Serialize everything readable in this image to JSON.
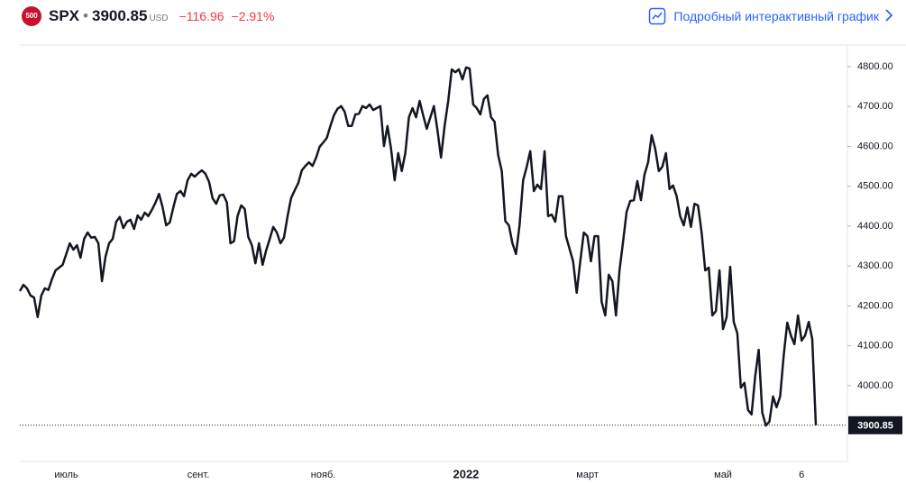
{
  "header": {
    "logo": "500",
    "symbol": "SPX",
    "price": "3900.85",
    "currency": "USD",
    "change": "−116.96",
    "change_percent": "−2.91%",
    "link": "Подробный интерактивный график"
  },
  "chart_data": {
    "type": "line",
    "categories": [
      null,
      null,
      null,
      null,
      null,
      null,
      null,
      null,
      null,
      null,
      null,
      null,
      null,
      "июль",
      null,
      null,
      null,
      null,
      null,
      null,
      null,
      null,
      null,
      null,
      null,
      null,
      null,
      null,
      null,
      null,
      null,
      null,
      null,
      null,
      null,
      null,
      null,
      null,
      null,
      null,
      null,
      null,
      null,
      null,
      null,
      null,
      null,
      null,
      null,
      null,
      "сент.",
      null,
      null,
      null,
      null,
      null,
      null,
      null,
      null,
      null,
      null,
      null,
      null,
      null,
      null,
      null,
      null,
      null,
      null,
      null,
      null,
      null,
      null,
      null,
      null,
      null,
      null,
      null,
      null,
      null,
      null,
      null,
      null,
      null,
      null,
      "нояб.",
      null,
      null,
      null,
      null,
      null,
      null,
      null,
      null,
      null,
      null,
      null,
      null,
      null,
      null,
      null,
      null,
      null,
      null,
      null,
      null,
      null,
      null,
      null,
      null,
      null,
      null,
      null,
      null,
      null,
      null,
      null,
      null,
      null,
      null,
      null,
      null,
      null,
      null,
      null,
      "2022",
      null,
      null,
      null,
      null,
      null,
      null,
      null,
      null,
      null,
      null,
      null,
      null,
      null,
      null,
      null,
      null,
      null,
      null,
      null,
      null,
      null,
      null,
      null,
      null,
      null,
      null,
      null,
      null,
      null,
      null,
      null,
      null,
      null,
      "март",
      null,
      null,
      null,
      null,
      null,
      null,
      null,
      null,
      null,
      null,
      null,
      null,
      null,
      null,
      null,
      null,
      null,
      null,
      null,
      null,
      null,
      null,
      null,
      null,
      null,
      null,
      null,
      null,
      null,
      null,
      null,
      null,
      null,
      null,
      null,
      null,
      null,
      "май",
      null,
      null,
      null,
      null,
      null,
      null,
      null,
      null,
      null,
      null,
      null,
      null,
      null,
      null,
      null,
      null,
      null,
      null,
      null,
      null,
      null,
      "6",
      null,
      null,
      null,
      null
    ],
    "series": [
      {
        "name": "SPX",
        "color": "#131722",
        "values": [
          4237,
          4253,
          4244,
          4226,
          4221,
          4172,
          4226,
          4244,
          4240,
          4267,
          4289,
          4296,
          4303,
          4330,
          4357,
          4341,
          4352,
          4321,
          4368,
          4384,
          4371,
          4373,
          4357,
          4262,
          4323,
          4357,
          4368,
          4411,
          4423,
          4395,
          4411,
          4416,
          4393,
          4427,
          4416,
          4434,
          4425,
          4441,
          4459,
          4481,
          4447,
          4402,
          4409,
          4447,
          4481,
          4488,
          4475,
          4515,
          4531,
          4524,
          4533,
          4540,
          4531,
          4511,
          4470,
          4456,
          4477,
          4479,
          4459,
          4357,
          4362,
          4425,
          4452,
          4443,
          4373,
          4352,
          4307,
          4357,
          4303,
          4339,
          4368,
          4398,
          4384,
          4357,
          4371,
          4425,
          4470,
          4490,
          4508,
          4540,
          4551,
          4560,
          4551,
          4572,
          4599,
          4610,
          4621,
          4651,
          4678,
          4694,
          4701,
          4687,
          4651,
          4651,
          4680,
          4682,
          4701,
          4696,
          4705,
          4691,
          4696,
          4701,
          4601,
          4651,
          4594,
          4515,
          4583,
          4538,
          4583,
          4673,
          4696,
          4673,
          4714,
          4678,
          4644,
          4673,
          4701,
          4640,
          4572,
          4651,
          4714,
          4793,
          4786,
          4793,
          4768,
          4798,
          4795,
          4705,
          4696,
          4680,
          4719,
          4728,
          4673,
          4662,
          4578,
          4538,
          4413,
          4402,
          4357,
          4330,
          4402,
          4515,
          4549,
          4588,
          4488,
          4504,
          4493,
          4588,
          4425,
          4429,
          4411,
          4475,
          4475,
          4375,
          4343,
          4312,
          4233,
          4312,
          4384,
          4375,
          4312,
          4375,
          4375,
          4210,
          4176,
          4278,
          4262,
          4176,
          4289,
          4362,
          4436,
          4463,
          4465,
          4513,
          4465,
          4529,
          4560,
          4628,
          4594,
          4538,
          4549,
          4583,
          4493,
          4502,
          4475,
          4425,
          4402,
          4447,
          4398,
          4456,
          4452,
          4384,
          4289,
          4296,
          4176,
          4187,
          4289,
          4142,
          4172,
          4298,
          4160,
          4131,
          3995,
          4007,
          3939,
          3928,
          4023,
          4090,
          3932,
          3900,
          3910,
          3973,
          3946,
          3973,
          4077,
          4158,
          4126,
          4104,
          4176,
          4113,
          4126,
          4160,
          4117,
          3900.85
        ]
      }
    ],
    "ylim": [
      3810,
      4854
    ],
    "yticks": [
      {
        "value": 4000,
        "label": "4000.00"
      },
      {
        "value": 4100,
        "label": "4100.00"
      },
      {
        "value": 4200,
        "label": "4200.00"
      },
      {
        "value": 4300,
        "label": "4300.00"
      },
      {
        "value": 4400,
        "label": "4400.00"
      },
      {
        "value": 4500,
        "label": "4500.00"
      },
      {
        "value": 4600,
        "label": "4600.00"
      },
      {
        "value": 4700,
        "label": "4700.00"
      },
      {
        "value": 4800,
        "label": "4800.00"
      }
    ],
    "grid": false
  }
}
